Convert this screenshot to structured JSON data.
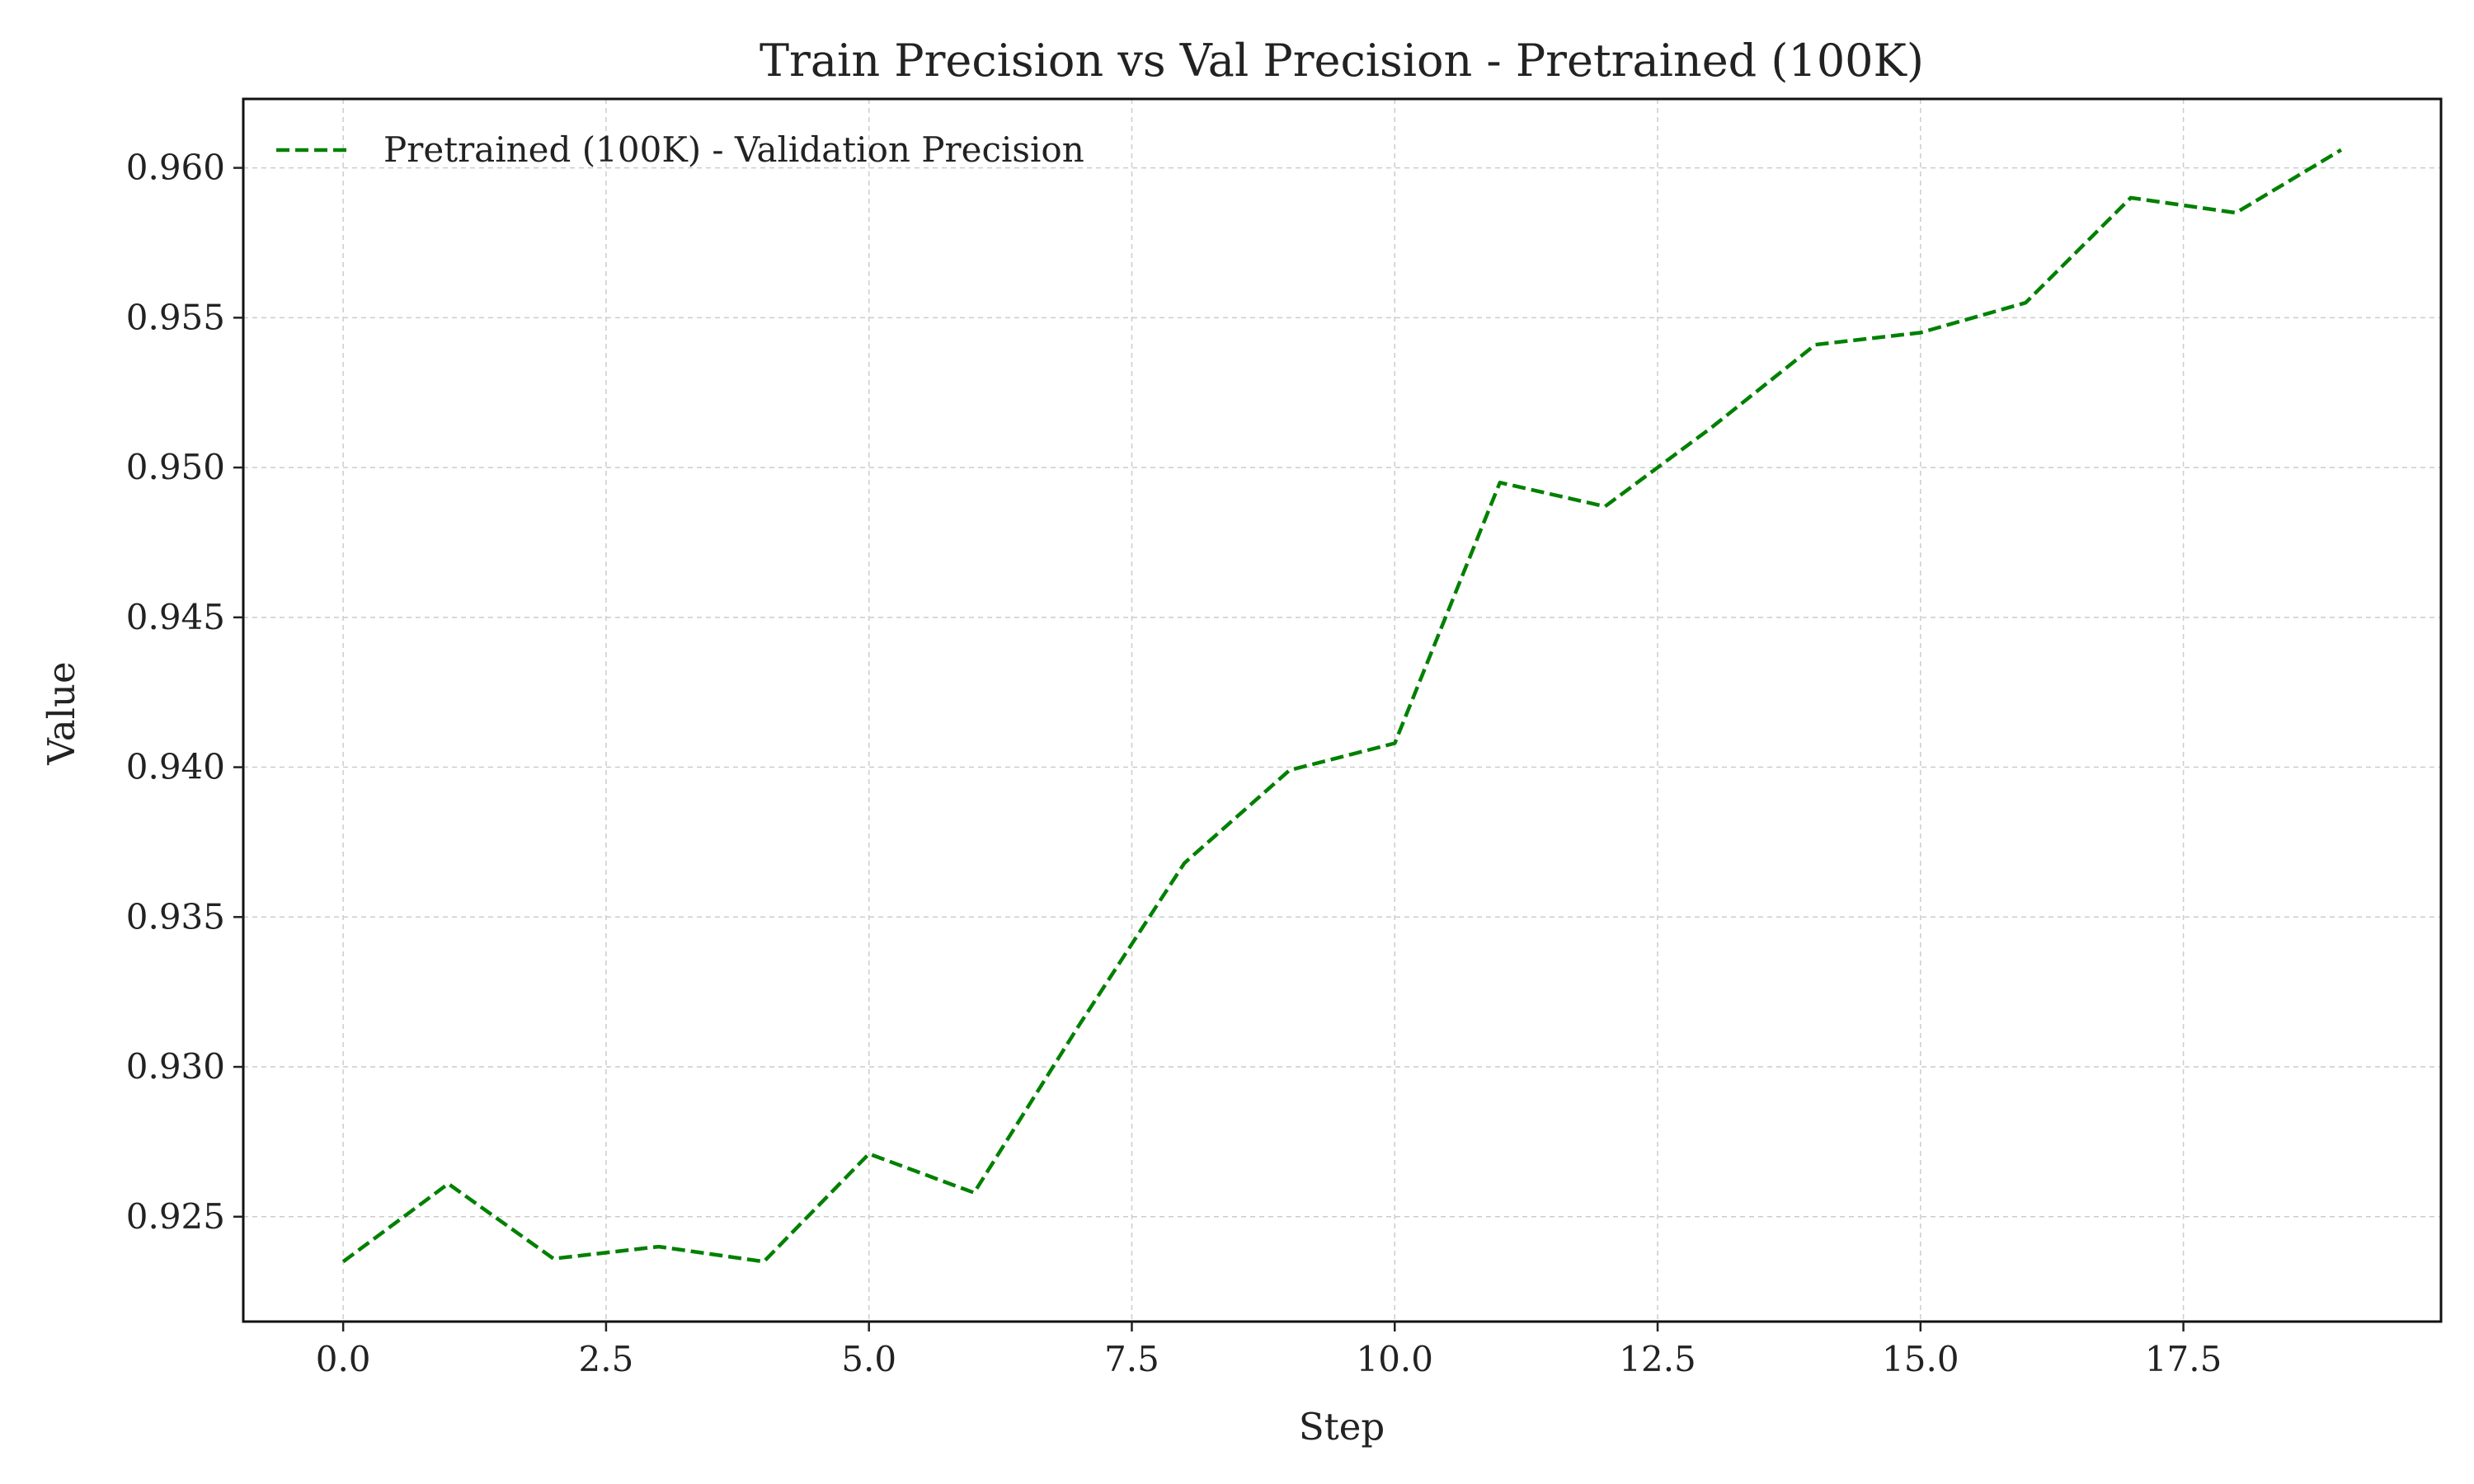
{
  "chart_data": {
    "type": "line",
    "title": "Train Precision vs Val Precision - Pretrained (100K)",
    "xlabel": "Step",
    "ylabel": "Value",
    "xlim": [
      -0.95,
      19.95
    ],
    "ylim": [
      0.9215,
      0.9623
    ],
    "xticks": [
      0,
      2.5,
      5,
      7.5,
      10,
      12.5,
      15,
      17.5
    ],
    "xtick_labels": [
      "0.0",
      "2.5",
      "5.0",
      "7.5",
      "10.0",
      "12.5",
      "15.0",
      "17.5"
    ],
    "yticks": [
      0.925,
      0.93,
      0.935,
      0.94,
      0.945,
      0.95,
      0.955,
      0.96
    ],
    "ytick_labels": [
      "0.925",
      "0.930",
      "0.935",
      "0.940",
      "0.945",
      "0.950",
      "0.955",
      "0.960"
    ],
    "grid": true,
    "legend_position": "top-left",
    "series": [
      {
        "name": "Pretrained (100K) - Validation Precision",
        "color": "#008000",
        "line_style": "dashed",
        "x": [
          0,
          1,
          2,
          3,
          4,
          5,
          6,
          7,
          8,
          9,
          10,
          11,
          12,
          13,
          14,
          15,
          16,
          17,
          18,
          19
        ],
        "y": [
          0.9235,
          0.9261,
          0.9236,
          0.924,
          0.9235,
          0.9271,
          0.9258,
          0.9314,
          0.9368,
          0.9399,
          0.9408,
          0.9495,
          0.9487,
          0.9513,
          0.9541,
          0.9545,
          0.9555,
          0.959,
          0.9585,
          0.9606
        ]
      }
    ]
  }
}
